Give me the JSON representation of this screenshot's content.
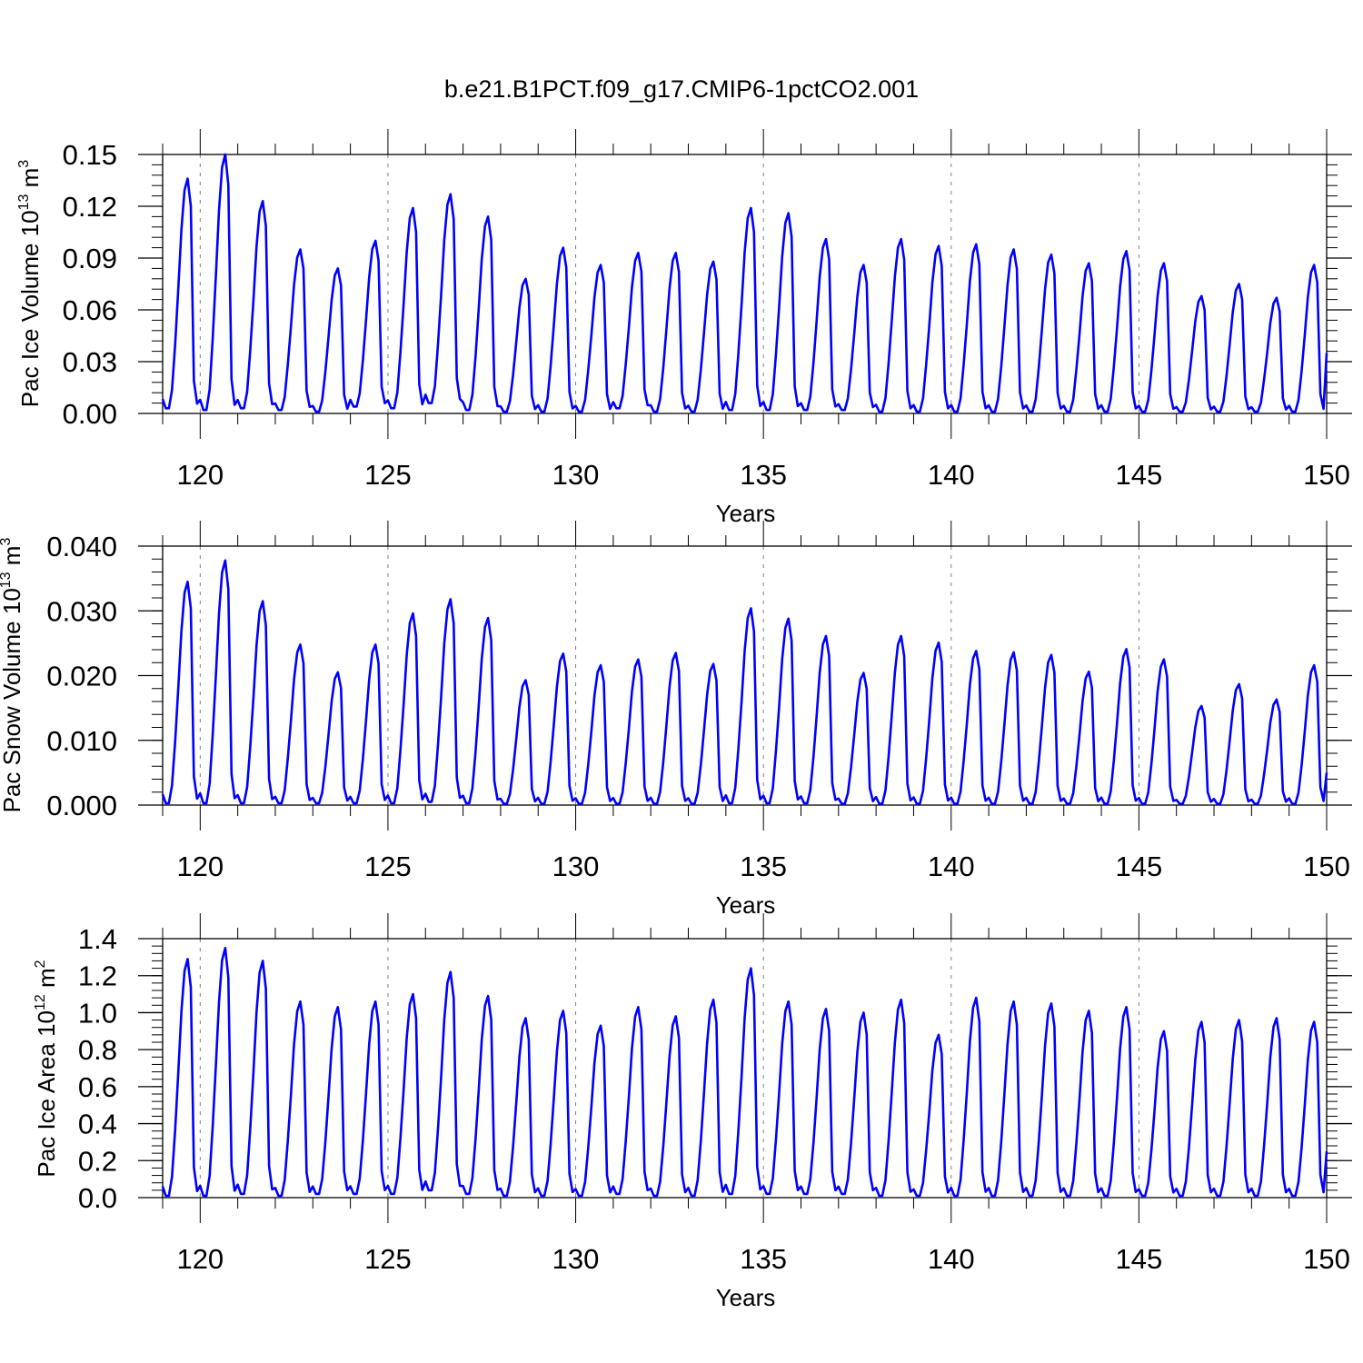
{
  "title": "b.e21.B1PCT.f09_g17.CMIP6-1pctCO2.001",
  "colors": {
    "series": "#0000ff",
    "frame": "#000000",
    "reference_lines": "#808080"
  },
  "chart_data": [
    {
      "type": "line",
      "title": "b.e21.B1PCT.f09_g17.CMIP6-1pctCO2.001",
      "xlabel": "Years",
      "ylabel": "Pac Ice Volume 10^13 m^3",
      "ylabel_parts": {
        "main": "Pac Ice Volume 10",
        "exp1": "13",
        "mid": " m",
        "exp2": "3"
      },
      "xlim": [
        119,
        150
      ],
      "ylim": [
        0,
        0.15
      ],
      "xticks": [
        "120",
        "125",
        "130",
        "135",
        "140",
        "145",
        "150"
      ],
      "yticks": [
        "0.00",
        "0.03",
        "0.06",
        "0.09",
        "0.12",
        "0.15"
      ],
      "ytick_values": [
        0,
        0.03,
        0.06,
        0.09,
        0.12,
        0.15
      ],
      "minor_y_step": 0.006,
      "reference_years": [
        120,
        125,
        130,
        135,
        140,
        145
      ],
      "grid": false,
      "series": [
        {
          "start_year": 119,
          "step_per_month": 0.083333,
          "annual_min": [
            0.003,
            0.002,
            0.003,
            0.002,
            0.001,
            0.004,
            0.003,
            0.006,
            0.002,
            0.001,
            0.001,
            0.001,
            0.003,
            0.001,
            0.001,
            0.002,
            0.002,
            0.002,
            0.002,
            0.001,
            0.001,
            0.001,
            0.001,
            0.001,
            0.001,
            0.001,
            0.001,
            0.001,
            0.001,
            0.001,
            0.001
          ],
          "annual_max": [
            0.136,
            0.15,
            0.123,
            0.095,
            0.084,
            0.1,
            0.119,
            0.127,
            0.114,
            0.078,
            0.096,
            0.086,
            0.093,
            0.093,
            0.088,
            0.119,
            0.116,
            0.101,
            0.086,
            0.101,
            0.097,
            0.098,
            0.095,
            0.092,
            0.087,
            0.094,
            0.087,
            0.068,
            0.075,
            0.067,
            0.086
          ],
          "end_value": 0.035
        }
      ]
    },
    {
      "type": "line",
      "xlabel": "Years",
      "ylabel": "Pac Snow Volume 10^13 m^3",
      "ylabel_parts": {
        "main": "Pac Snow Volume 10",
        "exp1": "13",
        "mid": " m",
        "exp2": "3"
      },
      "xlim": [
        119,
        150
      ],
      "ylim": [
        0,
        0.04
      ],
      "xticks": [
        "120",
        "125",
        "130",
        "135",
        "140",
        "145",
        "150"
      ],
      "yticks": [
        "0.000",
        "0.010",
        "0.020",
        "0.030",
        "0.040"
      ],
      "ytick_values": [
        0,
        0.01,
        0.02,
        0.03,
        0.04
      ],
      "minor_y_step": 0.002,
      "reference_years": [
        120,
        125,
        130,
        135,
        140,
        145
      ],
      "grid": false,
      "series": [
        {
          "start_year": 119,
          "step_per_month": 0.083333,
          "annual_min": [
            0.0003,
            0.0003,
            0.0003,
            0.0003,
            0.0003,
            0.0003,
            0.0003,
            0.0005,
            0.0003,
            0.0002,
            0.0002,
            0.0002,
            0.0002,
            0.0002,
            0.0002,
            0.0003,
            0.0003,
            0.0003,
            0.0002,
            0.0002,
            0.0002,
            0.0002,
            0.0002,
            0.0002,
            0.0002,
            0.0002,
            0.0002,
            0.0002,
            0.0002,
            0.0002,
            0.0002
          ],
          "annual_max": [
            0.0345,
            0.0378,
            0.0315,
            0.0248,
            0.0205,
            0.0248,
            0.0296,
            0.0318,
            0.0289,
            0.0193,
            0.0234,
            0.0216,
            0.0225,
            0.0235,
            0.0218,
            0.0304,
            0.0288,
            0.0261,
            0.0204,
            0.0261,
            0.0251,
            0.0238,
            0.0236,
            0.0232,
            0.0206,
            0.0241,
            0.0225,
            0.0153,
            0.0187,
            0.0163,
            0.0216
          ],
          "end_value": 0.005
        }
      ]
    },
    {
      "type": "line",
      "xlabel": "Years",
      "ylabel": "Pac Ice Area 10^12 m^2",
      "ylabel_parts": {
        "main": "Pac Ice Area 10",
        "exp1": "12",
        "mid": " m",
        "exp2": "2"
      },
      "xlim": [
        119,
        150
      ],
      "ylim": [
        0,
        1.4
      ],
      "xticks": [
        "120",
        "125",
        "130",
        "135",
        "140",
        "145",
        "150"
      ],
      "yticks": [
        "0.0",
        "0.2",
        "0.4",
        "0.6",
        "0.8",
        "1.0",
        "1.2",
        "1.4"
      ],
      "ytick_values": [
        0,
        0.2,
        0.4,
        0.6,
        0.8,
        1.0,
        1.2,
        1.4
      ],
      "minor_y_step": 0.04,
      "reference_years": [
        120,
        125,
        130,
        135,
        140,
        145
      ],
      "grid": false,
      "series": [
        {
          "start_year": 119,
          "step_per_month": 0.083333,
          "annual_min": [
            0.01,
            0.01,
            0.02,
            0.01,
            0.02,
            0.02,
            0.02,
            0.04,
            0.02,
            0.01,
            0.01,
            0.01,
            0.02,
            0.01,
            0.01,
            0.02,
            0.02,
            0.02,
            0.02,
            0.01,
            0.01,
            0.01,
            0.01,
            0.01,
            0.01,
            0.01,
            0.01,
            0.01,
            0.01,
            0.01,
            0.01
          ],
          "annual_max": [
            1.29,
            1.35,
            1.28,
            1.06,
            1.03,
            1.06,
            1.1,
            1.22,
            1.09,
            0.97,
            1.01,
            0.93,
            1.03,
            0.98,
            1.07,
            1.24,
            1.06,
            1.02,
            1.0,
            1.07,
            0.88,
            1.08,
            1.06,
            1.05,
            1.01,
            1.03,
            0.9,
            0.95,
            0.96,
            0.97,
            0.95
          ],
          "end_value": 0.25
        }
      ]
    }
  ]
}
